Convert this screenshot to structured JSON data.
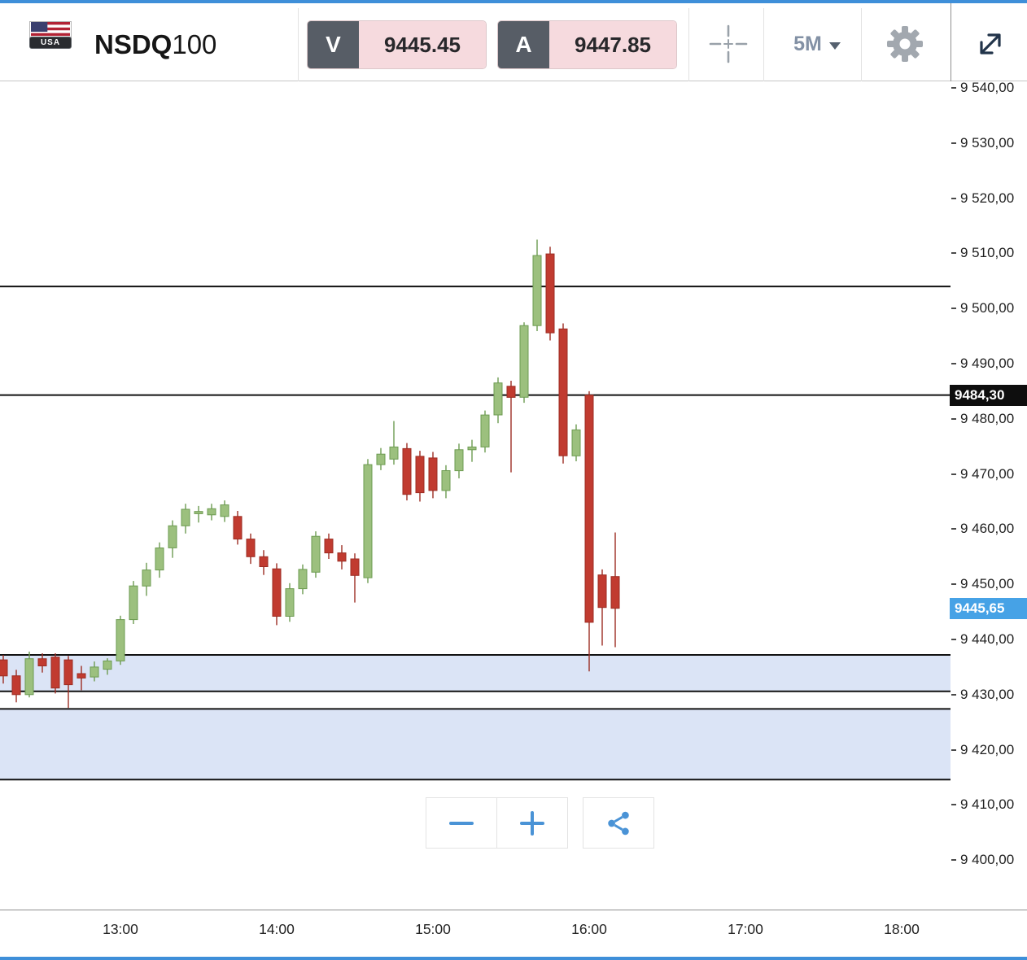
{
  "header": {
    "flag_label": "USA",
    "symbol": "NSDQ",
    "symbol_suffix": "100",
    "sell": {
      "letter": "V",
      "price": "9445.45"
    },
    "buy": {
      "letter": "A",
      "price": "9447.85"
    },
    "timeframe": "5M"
  },
  "chart_data": {
    "type": "candlestick",
    "instrument": "NSDQ100",
    "interval": "5M",
    "price_axis": {
      "min": 9400,
      "max": 9540,
      "step": 10,
      "labels": [
        {
          "v": 9540,
          "label": "9 540,00"
        },
        {
          "v": 9530,
          "label": "9 530,00"
        },
        {
          "v": 9520,
          "label": "9 520,00"
        },
        {
          "v": 9510,
          "label": "9 510,00"
        },
        {
          "v": 9500,
          "label": "9 500,00"
        },
        {
          "v": 9490,
          "label": "9 490,00"
        },
        {
          "v": 9480,
          "label": "9 480,00"
        },
        {
          "v": 9470,
          "label": "9 470,00"
        },
        {
          "v": 9460,
          "label": "9 460,00"
        },
        {
          "v": 9450,
          "label": "9 450,00"
        },
        {
          "v": 9440,
          "label": "9 440,00"
        },
        {
          "v": 9430,
          "label": "9 430,00"
        },
        {
          "v": 9420,
          "label": "9 420,00"
        },
        {
          "v": 9410,
          "label": "9 410,00"
        },
        {
          "v": 9400,
          "label": "9 400,00"
        }
      ]
    },
    "time_ticks": [
      {
        "label": "13:00",
        "i": 9
      },
      {
        "label": "14:00",
        "i": 21
      },
      {
        "label": "15:00",
        "i": 33
      },
      {
        "label": "16:00",
        "i": 45
      },
      {
        "label": "17:00",
        "i": 57
      },
      {
        "label": "18:00",
        "i": 69
      }
    ],
    "candles": [
      [
        9436.3,
        9437.2,
        9432.0,
        9433.4
      ],
      [
        9433.4,
        9434.5,
        9428.6,
        9430.0
      ],
      [
        9430.0,
        9437.8,
        9429.5,
        9436.5
      ],
      [
        9436.5,
        9437.5,
        9434.0,
        9435.2
      ],
      [
        9436.8,
        9437.5,
        9430.2,
        9431.2
      ],
      [
        9436.3,
        9437.0,
        9427.6,
        9431.8
      ],
      [
        9433.8,
        9435.2,
        9430.8,
        9433.0
      ],
      [
        9433.2,
        9436.0,
        9432.4,
        9435.0
      ],
      [
        9434.6,
        9436.6,
        9433.6,
        9436.1
      ],
      [
        9436.1,
        9444.3,
        9435.4,
        9443.6
      ],
      [
        9443.6,
        9450.6,
        9442.8,
        9449.7
      ],
      [
        9449.7,
        9453.9,
        9447.9,
        9452.6
      ],
      [
        9452.6,
        9457.6,
        9451.2,
        9456.6
      ],
      [
        9456.6,
        9461.6,
        9454.8,
        9460.6
      ],
      [
        9460.6,
        9464.6,
        9459.2,
        9463.6
      ],
      [
        9462.8,
        9464.2,
        9461.2,
        9463.2
      ],
      [
        9462.6,
        9464.6,
        9461.6,
        9463.7
      ],
      [
        9462.3,
        9465.2,
        9461.3,
        9464.4
      ],
      [
        9462.3,
        9463.3,
        9457.2,
        9458.2
      ],
      [
        9458.2,
        9459.2,
        9453.7,
        9455.0
      ],
      [
        9455.0,
        9456.2,
        9451.7,
        9453.2
      ],
      [
        9452.8,
        9453.8,
        9442.6,
        9444.2
      ],
      [
        9444.2,
        9450.2,
        9443.2,
        9449.2
      ],
      [
        9449.2,
        9453.6,
        9448.2,
        9452.7
      ],
      [
        9452.2,
        9459.6,
        9451.2,
        9458.7
      ],
      [
        9458.2,
        9459.2,
        9454.6,
        9455.7
      ],
      [
        9455.7,
        9457.1,
        9452.7,
        9454.2
      ],
      [
        9454.6,
        9455.6,
        9446.7,
        9451.6
      ],
      [
        9451.2,
        9472.7,
        9450.2,
        9471.7
      ],
      [
        9471.7,
        9474.7,
        9470.7,
        9473.6
      ],
      [
        9472.7,
        9479.6,
        9471.7,
        9474.9
      ],
      [
        9474.6,
        9475.6,
        9465.2,
        9466.3
      ],
      [
        9473.2,
        9474.2,
        9465.0,
        9466.6
      ],
      [
        9472.9,
        9474.0,
        9465.6,
        9467.0
      ],
      [
        9467.0,
        9471.6,
        9465.6,
        9470.6
      ],
      [
        9470.6,
        9475.5,
        9469.2,
        9474.4
      ],
      [
        9474.4,
        9476.2,
        9472.2,
        9474.9
      ],
      [
        9474.9,
        9481.5,
        9473.9,
        9480.7
      ],
      [
        9480.7,
        9487.5,
        9479.2,
        9486.5
      ],
      [
        9485.9,
        9486.9,
        9470.3,
        9483.9
      ],
      [
        9483.9,
        9497.5,
        9482.9,
        9496.9
      ],
      [
        9496.9,
        9512.5,
        9495.9,
        9509.6
      ],
      [
        9509.9,
        9511.2,
        9494.2,
        9495.6
      ],
      [
        9496.3,
        9497.3,
        9471.9,
        9473.3
      ],
      [
        9473.3,
        9479.0,
        9472.3,
        9478.0
      ],
      [
        9484.3,
        9485.0,
        9434.2,
        9443.1
      ],
      [
        9451.7,
        9452.7,
        9438.9,
        9445.8
      ],
      [
        9451.4,
        9459.4,
        9438.6,
        9445.65
      ]
    ],
    "lines": [
      {
        "price": 9504.0
      },
      {
        "price": 9484.3
      },
      {
        "price": 9437.2
      },
      {
        "price": 9430.6
      },
      {
        "price": 9427.4
      },
      {
        "price": 9414.6
      }
    ],
    "bands": [
      {
        "top": 9437.2,
        "bottom": 9430.6
      },
      {
        "top": 9427.4,
        "bottom": 9414.6
      }
    ],
    "line_badge": {
      "value": 9484.3,
      "label": "9484,30"
    },
    "last_price": {
      "value": 9445.65,
      "label": "9445,65"
    },
    "colors": {
      "up": "#9cc07e",
      "up_stroke": "#6d9b51",
      "down": "#c13b30",
      "down_stroke": "#9c2d23",
      "line": "#111111",
      "band": "#dbe4f6",
      "last_badge": "#46a2e6",
      "line_badge": "#0e0e0e"
    }
  }
}
